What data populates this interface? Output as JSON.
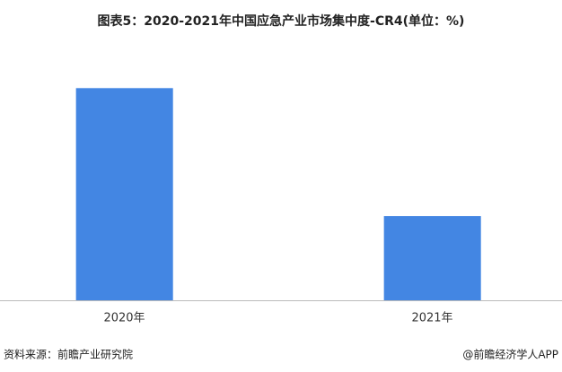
{
  "chart_data": {
    "type": "bar",
    "title": "图表5：2020-2021年中国应急产业市场集中度-CR4(单位：%)",
    "categories": [
      "2020年",
      "2021年"
    ],
    "values": [
      12.6,
      5.0
    ],
    "color": "#4386e3",
    "ylim": [
      0,
      14
    ],
    "source": "资料来源：前瞻产业研究院",
    "credit": "@前瞻经济学人APP"
  }
}
